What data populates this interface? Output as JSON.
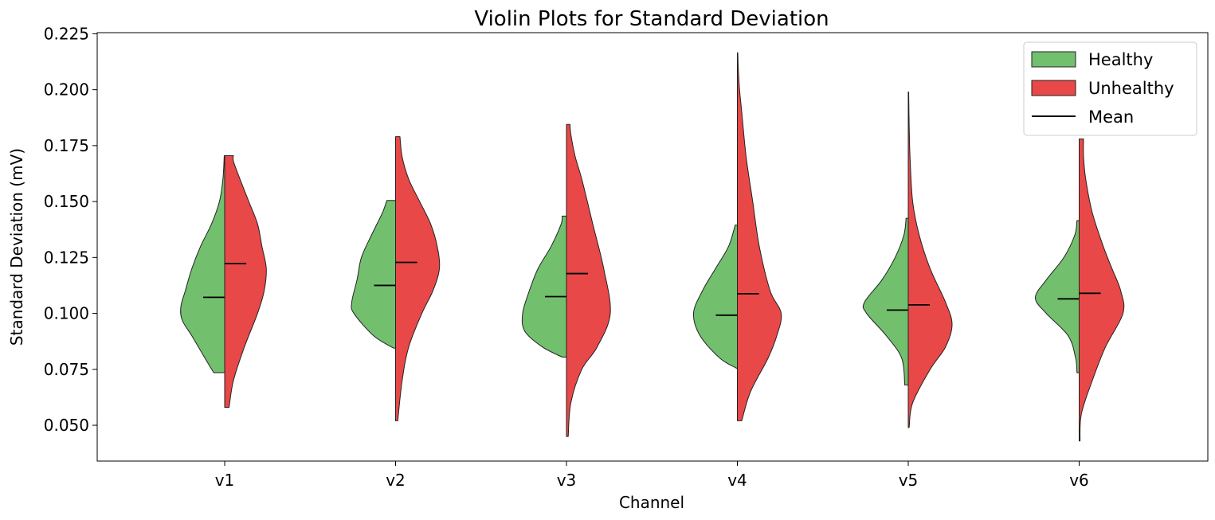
{
  "chart_data": {
    "type": "violin",
    "title": "Violin Plots for Standard Deviation",
    "xlabel": "Channel",
    "ylabel": "Standard Deviation (mV)",
    "ylim": [
      0.034,
      0.2255
    ],
    "yticks": [
      0.05,
      0.075,
      0.1,
      0.125,
      0.15,
      0.175,
      0.2,
      0.225
    ],
    "ytick_labels": [
      "0.050",
      "0.075",
      "0.100",
      "0.125",
      "0.150",
      "0.175",
      "0.200",
      "0.225"
    ],
    "categories": [
      "v1",
      "v2",
      "v3",
      "v4",
      "v5",
      "v6"
    ],
    "legend": {
      "position": "top-right",
      "entries": [
        {
          "label": "Healthy",
          "kind": "patch",
          "color": "#72bf6e"
        },
        {
          "label": "Unhealthy",
          "kind": "patch",
          "color": "#e84848"
        },
        {
          "label": "Mean",
          "kind": "line",
          "color": "#000000"
        }
      ]
    },
    "series": [
      {
        "name": "Healthy",
        "side": "left",
        "color": "#72bf6e",
        "groups": [
          {
            "min": 0.0735,
            "max": 0.1705,
            "mean": 0.1072,
            "profile": [
              [
                0.0735,
                0.25
              ],
              [
                0.08,
                0.45
              ],
              [
                0.09,
                0.75
              ],
              [
                0.097,
                0.97
              ],
              [
                0.103,
                1.0
              ],
              [
                0.11,
                0.9
              ],
              [
                0.12,
                0.75
              ],
              [
                0.13,
                0.55
              ],
              [
                0.14,
                0.3
              ],
              [
                0.15,
                0.12
              ],
              [
                0.16,
                0.04
              ],
              [
                0.1705,
                0.01
              ]
            ]
          },
          {
            "min": 0.0845,
            "max": 0.1505,
            "mean": 0.1125,
            "profile": [
              [
                0.0845,
                0.05
              ],
              [
                0.09,
                0.5
              ],
              [
                0.1,
                0.95
              ],
              [
                0.105,
                1.0
              ],
              [
                0.115,
                0.88
              ],
              [
                0.125,
                0.78
              ],
              [
                0.135,
                0.55
              ],
              [
                0.145,
                0.3
              ],
              [
                0.1505,
                0.2
              ]
            ]
          },
          {
            "min": 0.0805,
            "max": 0.1435,
            "mean": 0.1075,
            "profile": [
              [
                0.0805,
                0.1
              ],
              [
                0.085,
                0.55
              ],
              [
                0.092,
                0.95
              ],
              [
                0.1,
                1.0
              ],
              [
                0.11,
                0.85
              ],
              [
                0.12,
                0.65
              ],
              [
                0.13,
                0.35
              ],
              [
                0.14,
                0.12
              ],
              [
                0.1435,
                0.1
              ]
            ]
          },
          {
            "min": 0.0755,
            "max": 0.1395,
            "mean": 0.0992,
            "profile": [
              [
                0.0755,
                0.02
              ],
              [
                0.08,
                0.4
              ],
              [
                0.09,
                0.85
              ],
              [
                0.1,
                1.0
              ],
              [
                0.11,
                0.8
              ],
              [
                0.12,
                0.5
              ],
              [
                0.13,
                0.2
              ],
              [
                0.1395,
                0.05
              ]
            ]
          },
          {
            "min": 0.068,
            "max": 0.1425,
            "mean": 0.1015,
            "profile": [
              [
                0.068,
                0.08
              ],
              [
                0.08,
                0.15
              ],
              [
                0.09,
                0.5
              ],
              [
                0.1,
                0.95
              ],
              [
                0.105,
                1.0
              ],
              [
                0.115,
                0.6
              ],
              [
                0.125,
                0.3
              ],
              [
                0.135,
                0.1
              ],
              [
                0.1425,
                0.05
              ]
            ]
          },
          {
            "min": 0.0735,
            "max": 0.1415,
            "mean": 0.1065,
            "profile": [
              [
                0.0735,
                0.05
              ],
              [
                0.08,
                0.08
              ],
              [
                0.09,
                0.25
              ],
              [
                0.1,
                0.75
              ],
              [
                0.107,
                1.0
              ],
              [
                0.115,
                0.75
              ],
              [
                0.125,
                0.35
              ],
              [
                0.135,
                0.1
              ],
              [
                0.1415,
                0.05
              ]
            ]
          }
        ]
      },
      {
        "name": "Unhealthy",
        "side": "right",
        "color": "#e84848",
        "groups": [
          {
            "min": 0.058,
            "max": 0.1705,
            "mean": 0.1223,
            "profile": [
              [
                0.058,
                0.1
              ],
              [
                0.07,
                0.2
              ],
              [
                0.085,
                0.45
              ],
              [
                0.1,
                0.75
              ],
              [
                0.11,
                0.9
              ],
              [
                0.12,
                0.95
              ],
              [
                0.13,
                0.85
              ],
              [
                0.14,
                0.75
              ],
              [
                0.15,
                0.55
              ],
              [
                0.16,
                0.35
              ],
              [
                0.168,
                0.2
              ],
              [
                0.1705,
                0.2
              ]
            ]
          },
          {
            "min": 0.052,
            "max": 0.179,
            "mean": 0.1228,
            "profile": [
              [
                0.052,
                0.05
              ],
              [
                0.07,
                0.15
              ],
              [
                0.085,
                0.3
              ],
              [
                0.1,
                0.6
              ],
              [
                0.11,
                0.85
              ],
              [
                0.12,
                1.0
              ],
              [
                0.13,
                0.95
              ],
              [
                0.14,
                0.8
              ],
              [
                0.15,
                0.55
              ],
              [
                0.16,
                0.3
              ],
              [
                0.17,
                0.15
              ],
              [
                0.179,
                0.1
              ]
            ]
          },
          {
            "min": 0.045,
            "max": 0.1845,
            "mean": 0.1178,
            "profile": [
              [
                0.045,
                0.04
              ],
              [
                0.06,
                0.1
              ],
              [
                0.075,
                0.35
              ],
              [
                0.085,
                0.7
              ],
              [
                0.1,
                1.0
              ],
              [
                0.12,
                0.85
              ],
              [
                0.14,
                0.6
              ],
              [
                0.16,
                0.35
              ],
              [
                0.17,
                0.2
              ],
              [
                0.18,
                0.1
              ],
              [
                0.1845,
                0.08
              ]
            ]
          },
          {
            "min": 0.052,
            "max": 0.2165,
            "mean": 0.1088,
            "profile": [
              [
                0.052,
                0.1
              ],
              [
                0.065,
                0.3
              ],
              [
                0.08,
                0.7
              ],
              [
                0.09,
                0.9
              ],
              [
                0.1,
                1.0
              ],
              [
                0.11,
                0.75
              ],
              [
                0.13,
                0.5
              ],
              [
                0.15,
                0.35
              ],
              [
                0.17,
                0.2
              ],
              [
                0.19,
                0.1
              ],
              [
                0.2,
                0.05
              ],
              [
                0.21,
                0.02
              ],
              [
                0.2165,
                0.01
              ]
            ]
          },
          {
            "min": 0.049,
            "max": 0.199,
            "mean": 0.1038,
            "profile": [
              [
                0.049,
                0.02
              ],
              [
                0.06,
                0.1
              ],
              [
                0.075,
                0.5
              ],
              [
                0.085,
                0.85
              ],
              [
                0.095,
                1.0
              ],
              [
                0.105,
                0.85
              ],
              [
                0.12,
                0.5
              ],
              [
                0.135,
                0.25
              ],
              [
                0.15,
                0.1
              ],
              [
                0.17,
                0.04
              ],
              [
                0.185,
                0.02
              ],
              [
                0.199,
                0.01
              ]
            ]
          },
          {
            "min": 0.043,
            "max": 0.178,
            "mean": 0.109,
            "profile": [
              [
                0.043,
                0.02
              ],
              [
                0.055,
                0.05
              ],
              [
                0.07,
                0.3
              ],
              [
                0.085,
                0.6
              ],
              [
                0.1,
                1.0
              ],
              [
                0.11,
                0.95
              ],
              [
                0.12,
                0.75
              ],
              [
                0.13,
                0.55
              ],
              [
                0.145,
                0.3
              ],
              [
                0.16,
                0.15
              ],
              [
                0.17,
                0.1
              ],
              [
                0.178,
                0.1
              ]
            ]
          }
        ]
      }
    ]
  }
}
